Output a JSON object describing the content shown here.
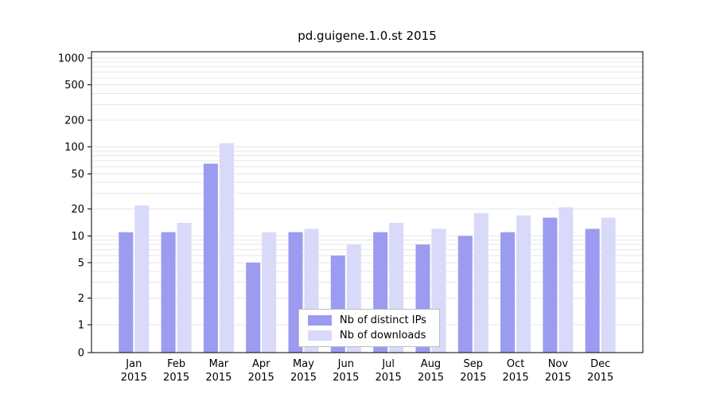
{
  "chart_data": {
    "type": "bar",
    "title": "pd.guigene.1.0.st 2015",
    "y_scale": "symlog",
    "y_ticks": [
      1000,
      500,
      200,
      100,
      50,
      20,
      10,
      5,
      2,
      1,
      0
    ],
    "ylim": [
      0,
      1400
    ],
    "grid": true,
    "legend_position": "bottom-center-inside",
    "months": [
      "Jan",
      "Feb",
      "Mar",
      "Apr",
      "May",
      "Jun",
      "Jul",
      "Aug",
      "Sep",
      "Oct",
      "Nov",
      "Dec"
    ],
    "year": "2015",
    "series": [
      {
        "name": "Nb of distinct IPs",
        "color": "#9b9bf0",
        "values": [
          11,
          11,
          65,
          5,
          11,
          6,
          11,
          8,
          10,
          11,
          16,
          12
        ]
      },
      {
        "name": "Nb of downloads",
        "color": "#d9d9fa",
        "values": [
          22,
          14,
          110,
          11,
          12,
          8,
          14,
          12,
          18,
          17,
          21,
          16
        ]
      }
    ],
    "grid_color": "#e7e7e7",
    "axis_color": "#000000",
    "background": "#ffffff"
  }
}
